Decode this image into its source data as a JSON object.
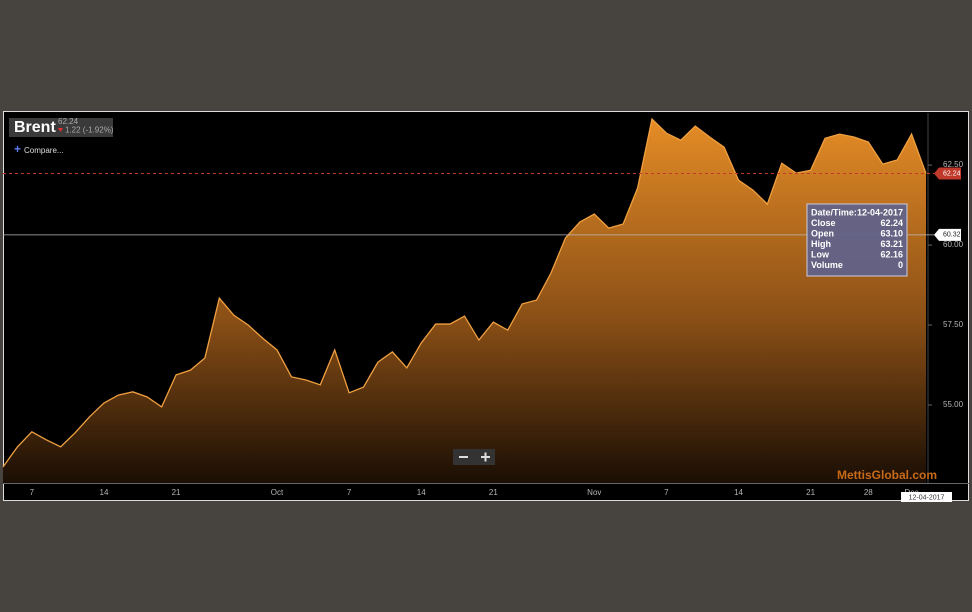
{
  "chart_data": {
    "type": "area",
    "title": "Brent",
    "price": 62.24,
    "change_label": "1.22 (-1.92%)",
    "compare_label": "Compare...",
    "watermark": "MettisGlobal.com",
    "series": [
      {
        "name": "Brent",
        "color": "#f0a040",
        "values": [
          53.06,
          53.69,
          54.16,
          53.91,
          53.69,
          54.13,
          54.63,
          55.06,
          55.31,
          55.41,
          55.25,
          54.94,
          55.94,
          56.09,
          56.47,
          58.34,
          57.81,
          57.5,
          57.09,
          56.72,
          55.88,
          55.78,
          55.63,
          56.72,
          55.38,
          55.56,
          56.34,
          56.66,
          56.16,
          56.94,
          57.53,
          57.53,
          57.78,
          57.03,
          57.59,
          57.34,
          58.16,
          58.28,
          59.13,
          60.22,
          60.72,
          60.97,
          60.53,
          60.66,
          61.78,
          63.94,
          63.5,
          63.28,
          63.72,
          63.38,
          63.06,
          62.03,
          61.72,
          61.28,
          62.56,
          62.25,
          62.34,
          63.34,
          63.47,
          63.38,
          63.22,
          62.53,
          62.66,
          63.47,
          62.24
        ]
      }
    ],
    "categories": [
      null,
      null,
      "7",
      null,
      null,
      null,
      null,
      "14",
      null,
      null,
      null,
      null,
      "21",
      null,
      null,
      null,
      null,
      null,
      null,
      "Oct",
      null,
      null,
      null,
      null,
      "7",
      null,
      null,
      null,
      null,
      "14",
      null,
      null,
      null,
      null,
      "21",
      null,
      null,
      null,
      null,
      null,
      null,
      "Nov",
      null,
      null,
      null,
      null,
      "7",
      null,
      null,
      null,
      null,
      "14",
      null,
      null,
      null,
      null,
      "21",
      null,
      null,
      null,
      "28",
      null,
      null,
      "Dec",
      null
    ],
    "ylim": [
      52.56,
      64.13
    ],
    "yticks": [
      {
        "value": 55,
        "label": "55.00"
      },
      {
        "value": 57.5,
        "label": "57.50"
      },
      {
        "value": 60,
        "label": "60.00"
      },
      {
        "value": 62.5,
        "label": "62.50"
      }
    ],
    "crosshair": {
      "value": 60.32,
      "label": "60.32"
    },
    "date_flag": "12-04-2017",
    "tooltip": {
      "rows": [
        [
          "Date/Time:",
          "12-04-2017"
        ],
        [
          "Close",
          "62.24"
        ],
        [
          "Open",
          "63.10"
        ],
        [
          "High",
          "63.21"
        ],
        [
          "Low",
          "62.16"
        ],
        [
          "Volume",
          "0"
        ]
      ]
    }
  }
}
